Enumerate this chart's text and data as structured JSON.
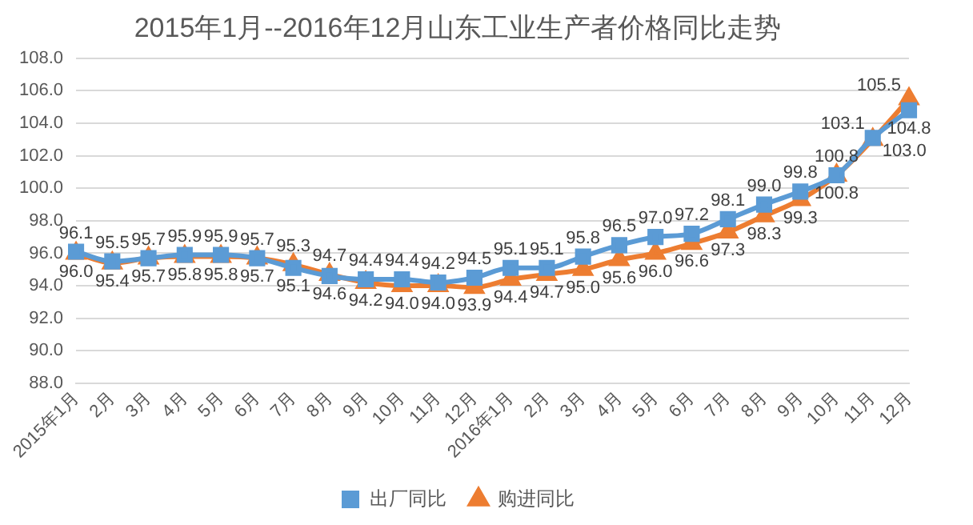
{
  "chart_data": {
    "type": "line",
    "title": "2015年1月--2016年12月山东工业生产者价格同比走势",
    "categories": [
      "2015年1月",
      "2月",
      "3月",
      "4月",
      "5月",
      "6月",
      "7月",
      "8月",
      "9月",
      "10月",
      "11月",
      "12月",
      "2016年1月",
      "2月",
      "3月",
      "4月",
      "5月",
      "6月",
      "7月",
      "8月",
      "9月",
      "10月",
      "11月",
      "12月"
    ],
    "series": [
      {
        "name": "出厂同比",
        "color": "#5b9bd5",
        "marker": "square",
        "values": [
          96.1,
          95.5,
          95.7,
          95.9,
          95.9,
          95.7,
          95.1,
          94.6,
          94.4,
          94.4,
          94.2,
          94.5,
          95.1,
          95.1,
          95.8,
          96.5,
          97.0,
          97.2,
          98.1,
          99.0,
          99.8,
          100.8,
          103.1,
          104.8
        ],
        "value_labels": [
          "96.1",
          "95.5",
          "95.7",
          "95.9",
          "95.9",
          "95.7",
          "95.1",
          "94.6",
          "94.4",
          "94.4",
          "94.2",
          "94.5",
          "95.1",
          "95.1",
          "95.8",
          "96.5",
          "97.0",
          "97.2",
          "98.1",
          "99.0",
          "99.8",
          "100.8",
          "103.1",
          "104.8"
        ]
      },
      {
        "name": "购进同比",
        "color": "#ed7d31",
        "marker": "triangle",
        "values": [
          96.0,
          95.4,
          95.7,
          95.8,
          95.8,
          95.7,
          95.3,
          94.7,
          94.2,
          94.0,
          94.0,
          93.9,
          94.4,
          94.7,
          95.0,
          95.6,
          96.0,
          96.6,
          97.3,
          98.3,
          99.3,
          100.8,
          103.0,
          105.5
        ],
        "value_labels": [
          "96.0",
          "95.4",
          "95.7",
          "95.8",
          "95.8",
          "95.7",
          "95.3",
          "94.7",
          "94.2",
          "94.0",
          "94.0",
          "93.9",
          "94.4",
          "94.7",
          "95.0",
          "95.6",
          "96.0",
          "96.6",
          "97.3",
          "98.3",
          "99.3",
          "100.8",
          "103.0",
          "105.5"
        ]
      }
    ],
    "ylim": [
      88,
      108
    ],
    "yticks": [
      {
        "value": 88,
        "label": "88.0"
      },
      {
        "value": 90,
        "label": "90.0"
      },
      {
        "value": 92,
        "label": "92.0"
      },
      {
        "value": 94,
        "label": "94.0"
      },
      {
        "value": 96,
        "label": "96.0"
      },
      {
        "value": 98,
        "label": "98.0"
      },
      {
        "value": 100,
        "label": "100.0"
      },
      {
        "value": 102,
        "label": "102.0"
      },
      {
        "value": 104,
        "label": "104.0"
      },
      {
        "value": 106,
        "label": "106.0"
      },
      {
        "value": 108,
        "label": "108.0"
      }
    ],
    "grid": "y",
    "legend": "bottom",
    "line_style": "solid"
  }
}
